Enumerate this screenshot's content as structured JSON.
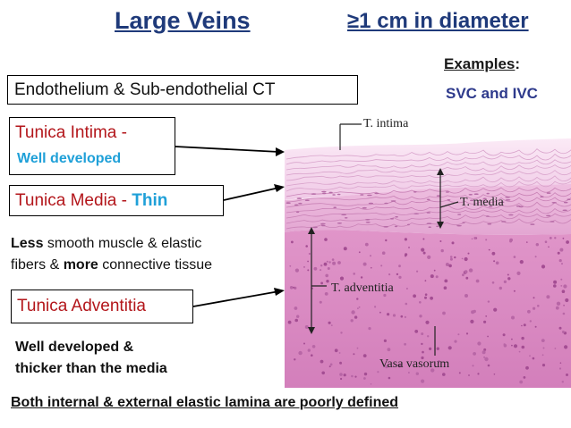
{
  "title": "Large Veins",
  "diameter": "≥1 cm in diameter",
  "examples": {
    "label": "Examples",
    "colon": ":",
    "values": "SVC and IVC"
  },
  "boxes": {
    "endothelium": "Endothelium & Sub-endothelial CT",
    "intima_name": "Tunica Intima -",
    "intima_desc": "Well developed",
    "media_name": "Tunica Media - ",
    "media_desc": "Thin",
    "adventitia": "Tunica Adventitia"
  },
  "media_note": {
    "w1": "Less",
    "t1": " smooth muscle & elastic",
    "t2": "fibers & ",
    "w2": "more",
    "t3": " connective tissue"
  },
  "adventitia_note": {
    "line1": "Well developed &",
    "line2": "thicker than the media"
  },
  "footer": "Both internal & external elastic lamina are poorly defined",
  "micrograph_labels": {
    "intima": "T. intima",
    "media": "T. media",
    "adventitia": "T. adventitia",
    "vasa": "Vasa vasorum"
  },
  "colors": {
    "title_blue": "#1f3a7a",
    "tunica_red": "#b3161b",
    "accent_cyan": "#1fa0d8",
    "example_blue": "#2e3a8c",
    "intima_tissue": "#f3d3ea",
    "media_tissue": "#e9b7dc",
    "adventitia_tissue": "#dc8cc4"
  }
}
